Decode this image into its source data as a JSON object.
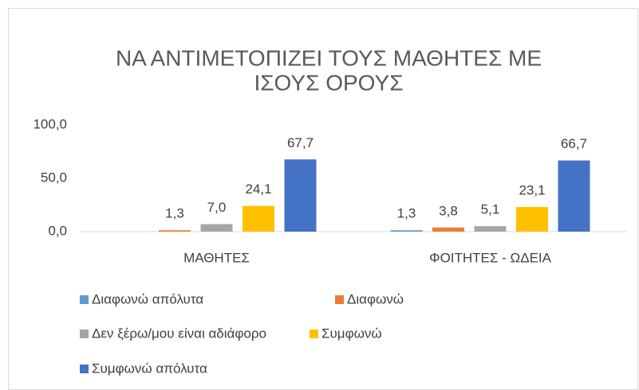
{
  "chart_data": {
    "type": "bar",
    "title": [
      "ΝΑ ΑΝΤΙΜΕΤΟΠΙΖΕΙ ΤΟΥΣ ΜΑΘΗΤΕΣ ΜΕ",
      "ΙΣΟΥΣ ΟΡΟΥΣ"
    ],
    "categories": [
      "ΜΑΘΗΤΕΣ",
      "ΦΟΙΤΗΤΕΣ - ΩΔΕΙΑ"
    ],
    "series": [
      {
        "name": "Διαφωνώ απόλυτα",
        "color": "#5b9bd5",
        "values": [
          null,
          1.3
        ],
        "value_labels": [
          null,
          "1,3"
        ]
      },
      {
        "name": "Διαφωνώ",
        "color": "#ed7d31",
        "values": [
          1.3,
          3.8
        ],
        "value_labels": [
          "1,3",
          "3,8"
        ]
      },
      {
        "name": "Δεν ξέρω/μου είναι αδιάφορο",
        "color": "#a5a5a5",
        "values": [
          7.0,
          5.1
        ],
        "value_labels": [
          "7,0",
          "5,1"
        ]
      },
      {
        "name": "Συμφωνώ",
        "color": "#ffc000",
        "values": [
          24.1,
          23.1
        ],
        "value_labels": [
          "24,1",
          "23,1"
        ]
      },
      {
        "name": "Συμφωνώ απόλυτα",
        "color": "#4472c4",
        "values": [
          67.7,
          66.7
        ],
        "value_labels": [
          "67,7",
          "66,7"
        ]
      }
    ],
    "ylim": [
      0,
      100
    ],
    "yticks": [
      {
        "value": 0,
        "label": "0,0"
      },
      {
        "value": 50,
        "label": "50,0"
      },
      {
        "value": 100,
        "label": "100,0"
      }
    ],
    "grid": false,
    "legend": "bottom"
  }
}
